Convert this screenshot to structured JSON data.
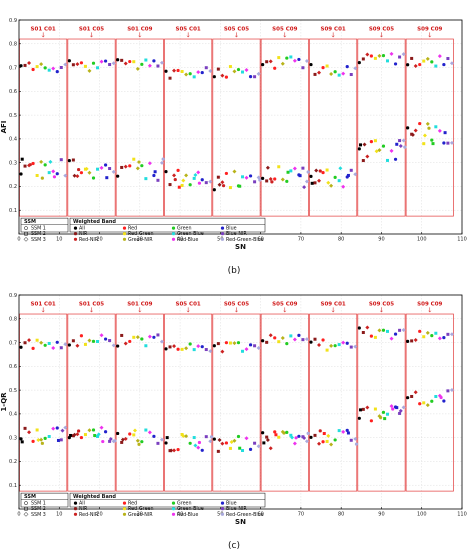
{
  "legend": {
    "ssm_header": "SSM",
    "ssm_items": [
      {
        "label": "SSM 1",
        "shape": "circle"
      },
      {
        "label": "SSM 2",
        "shape": "square"
      },
      {
        "label": "SSM 3",
        "shape": "diamond"
      }
    ],
    "band_header": "Weighted Band",
    "band_items": [
      {
        "label": "All",
        "color": "#000000"
      },
      {
        "label": "NIR",
        "color": "#8b1a1a"
      },
      {
        "label": "Red-NIR",
        "color": "#cc2222"
      },
      {
        "label": "Red",
        "color": "#ff2020"
      },
      {
        "label": "Red-Green",
        "color": "#f2e21a"
      },
      {
        "label": "Green-NIR",
        "color": "#b8b31a"
      },
      {
        "label": "Green",
        "color": "#22cc22"
      },
      {
        "label": "Green-Blue",
        "color": "#22dddd"
      },
      {
        "label": "Red-Blue",
        "color": "#ee33ee"
      },
      {
        "label": "Blue",
        "color": "#2222cc"
      },
      {
        "label": "Blue-NIR",
        "color": "#7a3fbf"
      },
      {
        "label": "Red-Green-Blue",
        "color": "#aaaadd"
      }
    ]
  },
  "chart_data": [
    {
      "type": "scatter",
      "caption": "(b)",
      "xlabel": "SN",
      "ylabel": "AFI",
      "xlim": [
        0,
        110
      ],
      "ylim": [
        0,
        0.9
      ],
      "xticks": [
        0,
        10,
        20,
        30,
        40,
        50,
        60,
        70,
        80,
        90,
        100,
        110
      ],
      "yticks": [
        0.1,
        0.2,
        0.3,
        0.4,
        0.5,
        0.6,
        0.7,
        0.8,
        0.9
      ],
      "grid": true,
      "segments": [
        {
          "label": "S01 C01",
          "x_range": [
            0,
            12
          ]
        },
        {
          "label": "S01 C05",
          "x_range": [
            12,
            24
          ]
        },
        {
          "label": "S01 C09",
          "x_range": [
            24,
            36
          ]
        },
        {
          "label": "S05 C01",
          "x_range": [
            36,
            48
          ]
        },
        {
          "label": "S05 C05",
          "x_range": [
            48,
            60
          ]
        },
        {
          "label": "S05 C09",
          "x_range": [
            60,
            72
          ]
        },
        {
          "label": "S09 C01",
          "x_range": [
            72,
            84
          ]
        },
        {
          "label": "S09 C05",
          "x_range": [
            84,
            96
          ]
        },
        {
          "label": "S09 C09",
          "x_range": [
            96,
            108
          ]
        }
      ],
      "segment_upper_levels": [
        0.7,
        0.71,
        0.71,
        0.68,
        0.68,
        0.72,
        0.69,
        0.74,
        0.73
      ],
      "segment_lower_levels": [
        0.27,
        0.28,
        0.27,
        0.23,
        0.22,
        0.24,
        0.24,
        0.35,
        0.42
      ],
      "spread": 0.045
    },
    {
      "type": "scatter",
      "caption": "(c)",
      "xlabel": "SN",
      "ylabel": "1-QR",
      "xlim": [
        0,
        110
      ],
      "ylim": [
        0,
        0.9
      ],
      "xticks": [
        0,
        10,
        20,
        30,
        40,
        50,
        60,
        70,
        80,
        90,
        100,
        110
      ],
      "yticks": [
        0.1,
        0.2,
        0.3,
        0.4,
        0.5,
        0.6,
        0.7,
        0.8,
        0.9
      ],
      "grid": true,
      "segments": [
        {
          "label": "S01 C01",
          "x_range": [
            0,
            12
          ]
        },
        {
          "label": "S01 C05",
          "x_range": [
            12,
            24
          ]
        },
        {
          "label": "S01 C09",
          "x_range": [
            24,
            36
          ]
        },
        {
          "label": "S05 C01",
          "x_range": [
            36,
            48
          ]
        },
        {
          "label": "S05 C05",
          "x_range": [
            48,
            60
          ]
        },
        {
          "label": "S05 C09",
          "x_range": [
            60,
            72
          ]
        },
        {
          "label": "S09 C01",
          "x_range": [
            72,
            84
          ]
        },
        {
          "label": "S09 C05",
          "x_range": [
            84,
            96
          ]
        },
        {
          "label": "S09 C09",
          "x_range": [
            96,
            108
          ]
        }
      ],
      "segment_upper_levels": [
        0.7,
        0.71,
        0.71,
        0.68,
        0.68,
        0.72,
        0.69,
        0.74,
        0.73
      ],
      "segment_lower_levels": [
        0.31,
        0.31,
        0.3,
        0.28,
        0.27,
        0.29,
        0.3,
        0.4,
        0.47
      ],
      "spread": 0.035
    }
  ]
}
